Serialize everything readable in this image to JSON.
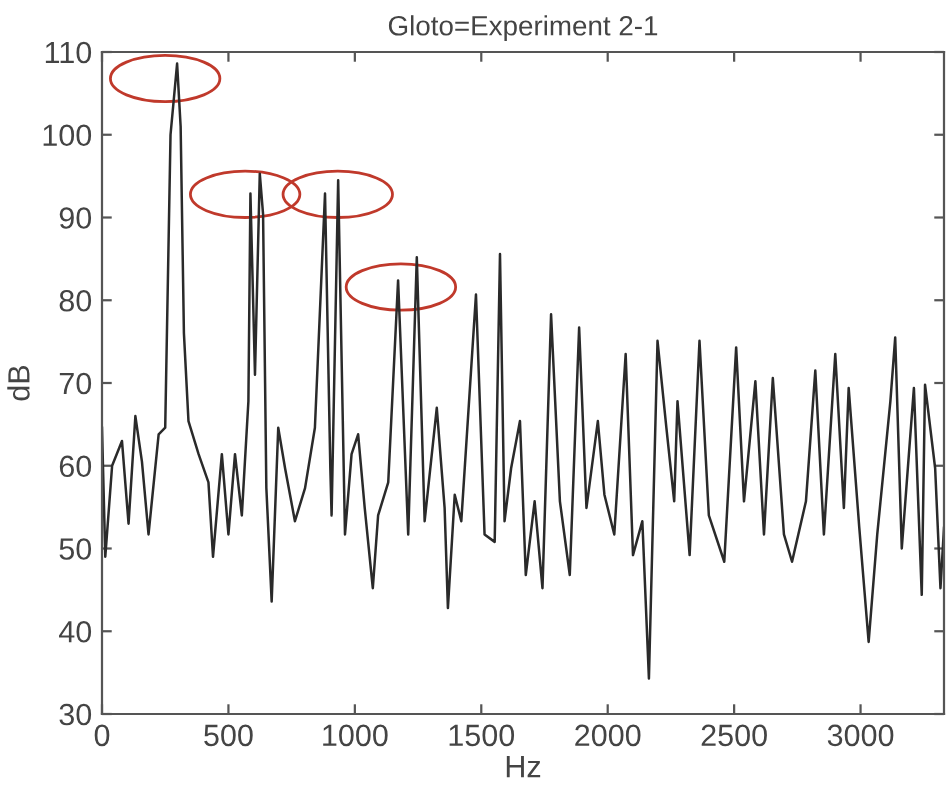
{
  "chart_data": {
    "type": "line",
    "title": "Gloto=Experiment 2-1",
    "xlabel": "Hz",
    "ylabel": "dB",
    "xlim": [
      0,
      3330
    ],
    "ylim": [
      30,
      110
    ],
    "xticks": [
      0,
      500,
      1000,
      1500,
      2000,
      2500,
      3000
    ],
    "yticks": [
      30,
      40,
      50,
      60,
      70,
      80,
      90,
      100,
      110
    ],
    "marker": "none",
    "line_style": "solid",
    "series": [
      {
        "color": "#2a2a2a",
        "x": [
          0,
          13,
          40,
          79,
          105,
          132,
          158,
          184,
          224,
          250,
          271,
          297,
          311,
          324,
          342,
          382,
          421,
          439,
          474,
          500,
          526,
          553,
          579,
          587,
          605,
          624,
          637,
          650,
          671,
          697,
          724,
          763,
          803,
          842,
          882,
          903,
          908,
          934,
          961,
          987,
          1013,
          1039,
          1071,
          1092,
          1132,
          1171,
          1211,
          1245,
          1276,
          1324,
          1355,
          1368,
          1395,
          1421,
          1479,
          1513,
          1553,
          1574,
          1592,
          1618,
          1653,
          1676,
          1711,
          1742,
          1776,
          1811,
          1850,
          1887,
          1916,
          1961,
          1987,
          2026,
          2071,
          2100,
          2137,
          2163,
          2197,
          2232,
          2263,
          2276,
          2324,
          2363,
          2400,
          2461,
          2508,
          2539,
          2584,
          2618,
          2653,
          2697,
          2729,
          2784,
          2821,
          2855,
          2900,
          2934,
          2953,
          2995,
          3032,
          3066,
          3118,
          3137,
          3163,
          3211,
          3242,
          3255,
          3295,
          3316,
          3330
        ],
        "values": [
          64.6,
          49,
          60,
          63,
          53,
          66,
          60.5,
          51.7,
          63.8,
          64.6,
          100,
          108.6,
          101,
          76,
          65.4,
          61.4,
          58,
          49,
          61.4,
          51.7,
          61.4,
          54,
          67.8,
          92.9,
          71,
          95.3,
          90.4,
          57.3,
          43.6,
          64.6,
          59.7,
          53.3,
          57.3,
          64.6,
          92.9,
          59.7,
          54,
          94.5,
          51.7,
          61.4,
          63.8,
          54.9,
          45.2,
          54,
          58,
          82.4,
          51.7,
          85.2,
          53.3,
          67,
          54.9,
          42.8,
          56.5,
          53.3,
          80.7,
          51.7,
          50.8,
          85.6,
          53.3,
          59.7,
          65.4,
          46.8,
          55.7,
          45.2,
          78.3,
          55.7,
          46.8,
          76.7,
          54.9,
          65.4,
          56.5,
          51.7,
          73.5,
          49.2,
          53.3,
          34.3,
          75.1,
          64.6,
          55.7,
          67.8,
          49.2,
          75.1,
          54,
          48.4,
          74.3,
          55.7,
          70.2,
          51.7,
          70.6,
          51.7,
          48.4,
          55.7,
          71.5,
          51.7,
          73.5,
          54.9,
          69.4,
          52.5,
          38.7,
          51.7,
          67.8,
          75.5,
          50,
          69.4,
          44.4,
          69.8,
          59.7,
          45.2,
          52.5
        ]
      }
    ]
  }
}
